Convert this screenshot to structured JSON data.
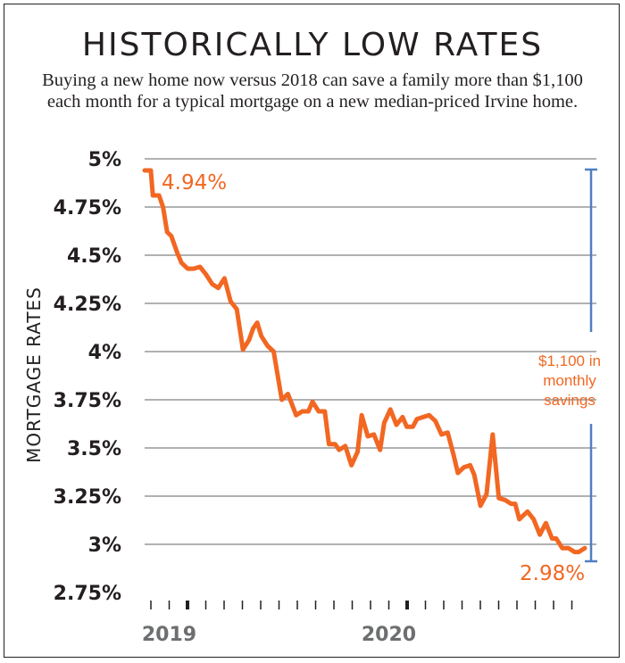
{
  "header": {
    "title": "HISTORICALLY LOW RATES",
    "subtitle_line1": "Buying a new home now versus 2018 can save a family more than $1,100",
    "subtitle_line2": "each month for a typical mortgage on a new median-priced Irvine home."
  },
  "colors": {
    "line": "#f26722",
    "bracket": "#4f7fc1",
    "grid": "#808285",
    "text": "#231f20",
    "year": "#6d6e70"
  },
  "chart_data": {
    "type": "line",
    "title": "HISTORICALLY LOW RATES",
    "ylabel": "MORTGAGE RATES",
    "xlabel": "",
    "ylim": [
      2.75,
      5
    ],
    "yticks": [
      5,
      4.75,
      4.5,
      4.25,
      4,
      3.75,
      3.5,
      3.25,
      3,
      2.75
    ],
    "ytick_labels": [
      "5%",
      "4.75%",
      "4.5%",
      "4.25%",
      "4%",
      "3.75%",
      "3.5%",
      "3.25%",
      "3%",
      "2.75%"
    ],
    "x_year_labels": [
      {
        "label": "2019",
        "x": 1
      },
      {
        "label": "2020",
        "x": 13
      }
    ],
    "xlim": [
      -2.5,
      19
    ],
    "grid": true,
    "series": [
      {
        "x": [
          -2.5,
          -2.2,
          -2.1,
          -1.8,
          -1.6,
          -1.4,
          -1.2,
          -0.9,
          -0.7,
          -0.4,
          -0.1,
          0.2,
          0.5,
          0.8,
          1.1,
          1.4,
          1.7,
          2.0,
          2.3,
          2.6,
          2.8,
          3.0,
          3.2,
          3.5,
          3.8,
          4.2,
          4.5,
          4.9,
          5.2,
          5.5,
          5.7,
          6.0,
          6.3,
          6.5,
          6.8,
          7.0,
          7.3,
          7.6,
          7.9,
          8.1,
          8.4,
          8.7,
          9.0,
          9.2,
          9.5,
          9.8,
          10.1,
          10.3,
          10.6,
          10.8,
          11.1,
          11.4,
          11.7,
          12.0,
          12.3,
          12.6,
          12.8,
          13.1,
          13.4,
          13.6,
          13.9,
          14.2,
          14.5,
          14.8,
          15.1,
          15.4,
          15.6,
          15.8,
          16.0,
          16.2,
          16.5,
          16.8,
          17.1,
          17.4,
          17.6,
          17.9,
          18.2,
          18.5,
          18.7,
          19.0
        ],
        "y": [
          4.94,
          4.94,
          4.81,
          4.81,
          4.75,
          4.62,
          4.6,
          4.51,
          4.46,
          4.43,
          4.43,
          4.44,
          4.4,
          4.35,
          4.33,
          4.38,
          4.26,
          4.22,
          4.01,
          4.06,
          4.12,
          4.15,
          4.08,
          4.03,
          4.0,
          3.75,
          3.78,
          3.67,
          3.69,
          3.69,
          3.74,
          3.69,
          3.69,
          3.52,
          3.52,
          3.49,
          3.51,
          3.41,
          3.48,
          3.67,
          3.56,
          3.57,
          3.49,
          3.63,
          3.7,
          3.62,
          3.66,
          3.61,
          3.61,
          3.65,
          3.66,
          3.67,
          3.64,
          3.57,
          3.58,
          3.46,
          3.37,
          3.4,
          3.41,
          3.36,
          3.2,
          3.26,
          3.57,
          3.24,
          3.23,
          3.21,
          3.21,
          3.13,
          3.15,
          3.17,
          3.13,
          3.05,
          3.11,
          3.03,
          3.03,
          2.98,
          2.98,
          2.96,
          2.96,
          2.98
        ]
      }
    ],
    "annotations": {
      "start_value": "4.94%",
      "end_value": "2.98%",
      "savings_line1": "$1,100 in",
      "savings_line2": "monthly",
      "savings_line3": "savings"
    }
  }
}
